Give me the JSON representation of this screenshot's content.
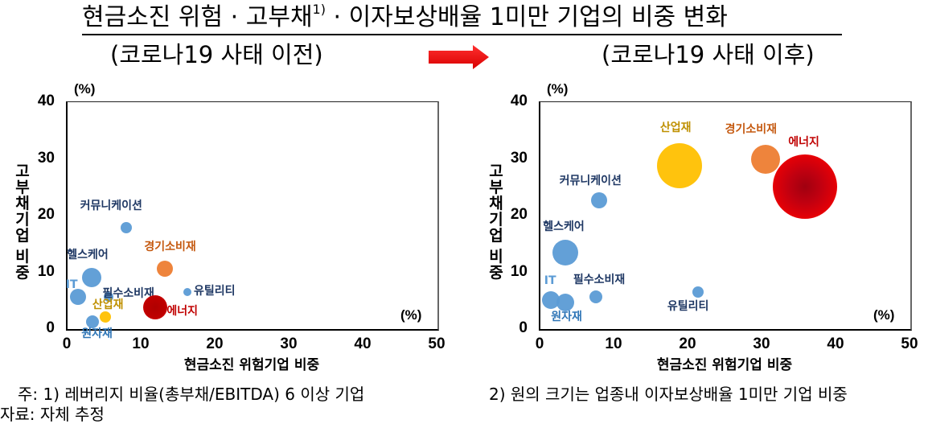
{
  "header": {
    "title": "현금소진 위험 · 고부채",
    "title_sup": "1)",
    "title_rest": " · 이자보상배율 1미만 기업의 비중 변화",
    "subtitle_before": "(코로나19 사태 이전)",
    "subtitle_after": "(코로나19 사태 이후)",
    "arrow_color": "#ee1c1c"
  },
  "axes": {
    "y_unit": "(%)",
    "x_unit": "(%)",
    "y_label": "고부채기업 비중",
    "x_label": "현금소진 위험기업 비중",
    "y_ticks": [
      "40",
      "30",
      "20",
      "10",
      "0"
    ],
    "x_ticks": [
      "0",
      "10",
      "20",
      "30",
      "40",
      "50"
    ]
  },
  "colors": {
    "blue_bubble": "#5b9bd5",
    "navy_label": "#1f3864",
    "orange_bubble": "#ed7d31",
    "orange_label": "#c55a11",
    "yellow_bubble": "#ffc000",
    "yellow_label": "#bf9000",
    "red_bubble": "#ff0000",
    "red_dark": "#c00000",
    "red_label": "#c00000"
  },
  "chart_data": [
    {
      "type": "scatter",
      "subtype": "bubble",
      "title": "(코로나19 사태 이전)",
      "xlabel": "현금소진 위험기업 비중",
      "ylabel": "고부채기업 비중",
      "x_unit": "(%)",
      "y_unit": "(%)",
      "xlim": [
        0,
        50
      ],
      "ylim": [
        0,
        40
      ],
      "grid": false,
      "size_meaning": "업종내 이자보상배율 1미만 기업 비중",
      "points": [
        {
          "name": "커뮤니케이션",
          "x": 8.0,
          "y": 17.7,
          "r": 7,
          "color": "#5b9bd5",
          "label_color": "#1f3864"
        },
        {
          "name": "헬스케어",
          "x": 3.4,
          "y": 9.0,
          "r": 12,
          "color": "#5b9bd5",
          "label_color": "#1f3864"
        },
        {
          "name": "IT",
          "x": 1.5,
          "y": 5.6,
          "r": 10,
          "color": "#5b9bd5",
          "label_color": "#5b9bd5"
        },
        {
          "name": "필수소비재",
          "x": 5.7,
          "y": 5.6,
          "r": 6,
          "color": "#5b9bd5",
          "label_color": "#1f3864"
        },
        {
          "name": "유틸리티",
          "x": 16.3,
          "y": 6.4,
          "r": 5,
          "color": "#5b9bd5",
          "label_color": "#1f3864"
        },
        {
          "name": "경기소비재",
          "x": 13.3,
          "y": 10.5,
          "r": 10,
          "color": "#ed7d31",
          "label_color": "#c55a11"
        },
        {
          "name": "에너지",
          "x": 12.0,
          "y": 3.7,
          "r": 15,
          "color": "#c00000",
          "label_color": "#c00000"
        },
        {
          "name": "산업재",
          "x": 5.2,
          "y": 2.0,
          "r": 7,
          "color": "#ffc000",
          "label_color": "#bf9000"
        },
        {
          "name": "원자재",
          "x": 3.5,
          "y": 1.1,
          "r": 8,
          "color": "#5b9bd5",
          "label_color": "#2e75b6"
        }
      ]
    },
    {
      "type": "scatter",
      "subtype": "bubble",
      "title": "(코로나19 사태 이후)",
      "xlabel": "현금소진 위험기업 비중",
      "ylabel": "고부채기업 비중",
      "x_unit": "(%)",
      "y_unit": "(%)",
      "xlim": [
        0,
        50
      ],
      "ylim": [
        0,
        40
      ],
      "grid": false,
      "size_meaning": "업종내 이자보상배율 1미만 기업 비중",
      "points": [
        {
          "name": "커뮤니케이션",
          "x": 8.0,
          "y": 22.6,
          "r": 10,
          "color": "#5b9bd5",
          "label_color": "#1f3864"
        },
        {
          "name": "헬스케어",
          "x": 3.5,
          "y": 13.3,
          "r": 16,
          "color": "#5b9bd5",
          "label_color": "#1f3864"
        },
        {
          "name": "IT",
          "x": 1.5,
          "y": 4.9,
          "r": 11,
          "color": "#5b9bd5",
          "label_color": "#5b9bd5"
        },
        {
          "name": "원자재",
          "x": 3.5,
          "y": 4.5,
          "r": 11,
          "color": "#5b9bd5",
          "label_color": "#2e75b6"
        },
        {
          "name": "필수소비재",
          "x": 7.6,
          "y": 5.6,
          "r": 8,
          "color": "#5b9bd5",
          "label_color": "#1f3864"
        },
        {
          "name": "유틸리티",
          "x": 21.4,
          "y": 6.4,
          "r": 7,
          "color": "#5b9bd5",
          "label_color": "#1f3864"
        },
        {
          "name": "산업재",
          "x": 18.9,
          "y": 28.6,
          "r": 28,
          "color": "#ffc000",
          "label_color": "#bf9000"
        },
        {
          "name": "경기소비재",
          "x": 30.5,
          "y": 29.8,
          "r": 18,
          "color": "#ed7d31",
          "label_color": "#c55a11"
        },
        {
          "name": "에너지",
          "x": 35.9,
          "y": 24.9,
          "r": 40,
          "color": "#ff0000",
          "label_color": "#c00000"
        }
      ]
    }
  ],
  "footnotes": {
    "note1": "주: 1) 레버리지 비율(총부채/EBITDA) 6 이상 기업",
    "note2": "2) 원의 크기는 업종내 이자보상배율 1미만 기업 비중",
    "source": "자료: 자체 추정"
  }
}
